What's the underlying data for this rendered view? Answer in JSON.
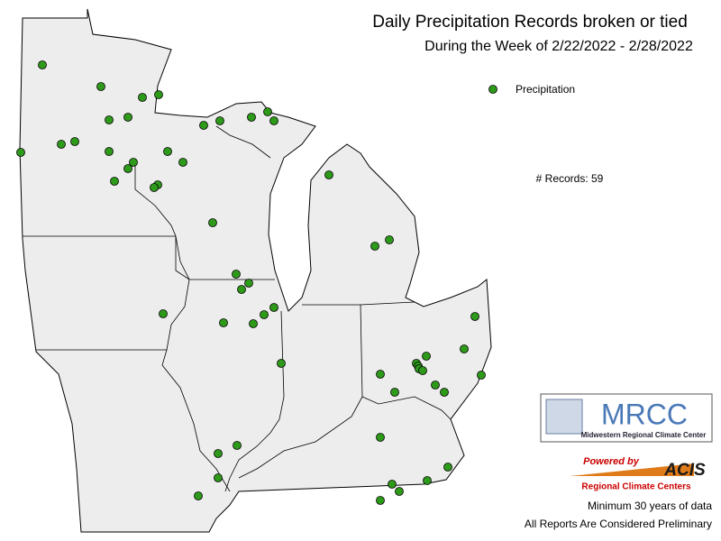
{
  "header": {
    "title": "Daily Precipitation Records broken or tied",
    "subtitle": "During the Week of 2/22/2022 - 2/28/2022"
  },
  "legend": {
    "label": "Precipitation"
  },
  "records": "# Records: 59",
  "logo": {
    "name": "MRCC",
    "full_name": "Midwestern Regional Climate Center",
    "powered": "Powered by",
    "acis": "ACIS",
    "acis_name": "Regional Climate Centers"
  },
  "footer": {
    "line1": "Minimum 30 years of data",
    "line2": "All Reports Are Considered Preliminary"
  }
}
